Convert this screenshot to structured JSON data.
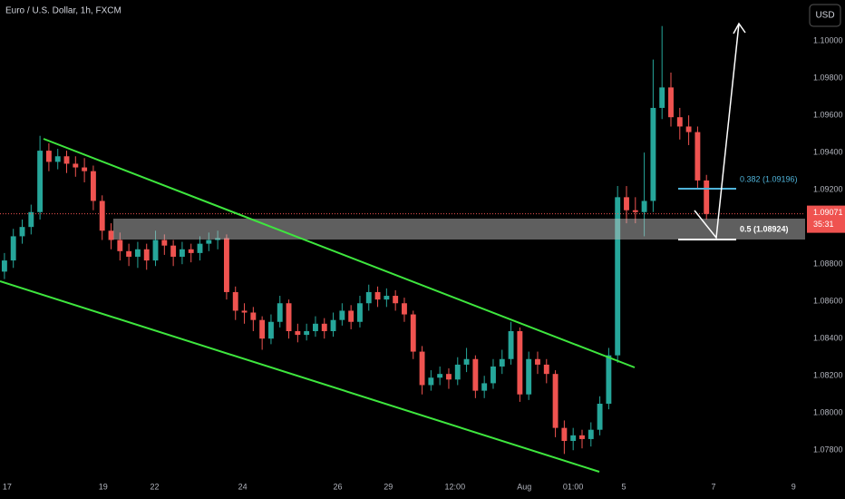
{
  "chart_data": {
    "type": "candlestick",
    "title": "Euro / U.S. Dollar, 1h, FXCM",
    "currency": "USD",
    "up_color": "#26a69a",
    "down_color": "#ef5350",
    "grid": false,
    "ylim": [
      1.0765,
      1.1022
    ],
    "yticks": [
      {
        "value": 1.078,
        "label": "1.07800"
      },
      {
        "value": 1.08,
        "label": "1.08000"
      },
      {
        "value": 1.082,
        "label": "1.08200"
      },
      {
        "value": 1.084,
        "label": "1.08400"
      },
      {
        "value": 1.086,
        "label": "1.08600"
      },
      {
        "value": 1.088,
        "label": "1.08800"
      },
      {
        "value": 1.092,
        "label": "1.09200"
      },
      {
        "value": 1.094,
        "label": "1.09400"
      },
      {
        "value": 1.096,
        "label": "1.09600"
      },
      {
        "value": 1.098,
        "label": "1.09800"
      },
      {
        "value": 1.1,
        "label": "1.10000"
      }
    ],
    "xlim": [
      -0.5,
      90.1
    ],
    "xticks": [
      {
        "value": 0.3,
        "label": "17"
      },
      {
        "value": 11.1,
        "label": "19"
      },
      {
        "value": 16.9,
        "label": "22"
      },
      {
        "value": 26.8,
        "label": "24"
      },
      {
        "value": 37.5,
        "label": "26"
      },
      {
        "value": 43.2,
        "label": "29"
      },
      {
        "value": 50.7,
        "label": "12:00"
      },
      {
        "value": 58.5,
        "label": "Aug"
      },
      {
        "value": 64,
        "label": "01:00"
      },
      {
        "value": 69.7,
        "label": "5"
      },
      {
        "value": 79.8,
        "label": "7"
      },
      {
        "value": 88.8,
        "label": "9"
      }
    ],
    "open": [
      1.0876,
      1.0882,
      1.0895,
      1.09,
      1.0908,
      1.0941,
      1.0935,
      1.0938,
      1.0934,
      1.0932,
      1.093,
      1.0914,
      1.0898,
      1.0893,
      1.0887,
      1.0884,
      1.0888,
      1.0882,
      1.0893,
      1.089,
      1.0884,
      1.0888,
      1.0886,
      1.0891,
      1.0893,
      1.0894,
      1.0865,
      1.0855,
      1.0854,
      1.085,
      1.084,
      1.0849,
      1.0859,
      1.0844,
      1.0842,
      1.0844,
      1.0848,
      1.0844,
      1.085,
      1.0855,
      1.0849,
      1.0859,
      1.0865,
      1.0861,
      1.0863,
      1.0859,
      1.0853,
      1.0833,
      1.0815,
      1.0819,
      1.0821,
      1.0818,
      1.0826,
      1.0829,
      1.0812,
      1.0816,
      1.0825,
      1.0829,
      1.0844,
      1.081,
      1.0829,
      1.0826,
      1.0821,
      1.0792,
      1.0785,
      1.0788,
      1.0786,
      1.0791,
      1.0805,
      1.0831,
      1.0916,
      1.0909,
      1.0908,
      1.0914,
      1.0964,
      1.0975,
      1.0959,
      1.0954,
      1.0951,
      1.0925
    ],
    "high": [
      1.0886,
      1.0899,
      1.0904,
      1.0912,
      1.0949,
      1.0945,
      1.0942,
      1.0941,
      1.0938,
      1.0937,
      1.0933,
      1.0917,
      1.0902,
      1.0897,
      1.0891,
      1.0892,
      1.0891,
      1.0898,
      1.0896,
      1.0893,
      1.0892,
      1.0891,
      1.0895,
      1.0897,
      1.0898,
      1.0896,
      1.0868,
      1.0859,
      1.0857,
      1.0852,
      1.0853,
      1.0863,
      1.0861,
      1.0848,
      1.0848,
      1.0852,
      1.0851,
      1.0854,
      1.0859,
      1.0858,
      1.0863,
      1.0869,
      1.0868,
      1.0867,
      1.0866,
      1.0862,
      1.0855,
      1.0836,
      1.0823,
      1.0825,
      1.0824,
      1.083,
      1.0835,
      1.0831,
      1.082,
      1.0829,
      1.0834,
      1.0849,
      1.0846,
      1.0833,
      1.0833,
      1.0829,
      1.0823,
      1.0796,
      1.0792,
      1.0791,
      1.0795,
      1.0809,
      1.0835,
      1.0922,
      1.0922,
      1.0916,
      1.094,
      1.099,
      1.1008,
      1.0983,
      1.0964,
      1.096,
      1.0954,
      1.0928
    ],
    "low": [
      1.0872,
      1.0878,
      1.0891,
      1.0896,
      1.0904,
      1.093,
      1.0931,
      1.0929,
      1.0927,
      1.0924,
      1.0909,
      1.0893,
      1.0888,
      1.0882,
      1.0879,
      1.0878,
      1.0877,
      1.0879,
      1.0885,
      1.0879,
      1.088,
      1.0881,
      1.0882,
      1.0887,
      1.0888,
      1.0861,
      1.085,
      1.0848,
      1.0844,
      1.0834,
      1.0837,
      1.0846,
      1.084,
      1.0838,
      1.0839,
      1.0841,
      1.084,
      1.0841,
      1.0847,
      1.0845,
      1.0846,
      1.0855,
      1.0857,
      1.0857,
      1.0855,
      1.0849,
      1.0829,
      1.081,
      1.0812,
      1.0815,
      1.0813,
      1.0815,
      1.0822,
      1.0808,
      1.0808,
      1.0813,
      1.0821,
      1.0826,
      1.0806,
      1.0807,
      1.0821,
      1.0816,
      1.0787,
      1.0778,
      1.078,
      1.0781,
      1.0782,
      1.0788,
      1.0802,
      1.0827,
      1.0902,
      1.0902,
      1.0895,
      1.0908,
      1.0958,
      1.0954,
      1.0947,
      1.0944,
      1.0921,
      1.0904
    ],
    "close": [
      1.0882,
      1.0895,
      1.09,
      1.0908,
      1.0941,
      1.0935,
      1.0938,
      1.0934,
      1.0932,
      1.093,
      1.0914,
      1.0898,
      1.0893,
      1.0887,
      1.0884,
      1.0888,
      1.0882,
      1.0893,
      1.089,
      1.0884,
      1.0888,
      1.0886,
      1.0891,
      1.0893,
      1.0894,
      1.0865,
      1.0855,
      1.0854,
      1.085,
      1.084,
      1.0849,
      1.0859,
      1.0844,
      1.0842,
      1.0844,
      1.0848,
      1.0844,
      1.085,
      1.0855,
      1.0849,
      1.0859,
      1.0865,
      1.0861,
      1.0863,
      1.0859,
      1.0853,
      1.0833,
      1.0815,
      1.0819,
      1.0821,
      1.0818,
      1.0826,
      1.0829,
      1.0812,
      1.0816,
      1.0825,
      1.0829,
      1.0844,
      1.081,
      1.0829,
      1.0826,
      1.0821,
      1.0792,
      1.0785,
      1.0788,
      1.0786,
      1.0791,
      1.0805,
      1.0831,
      1.0916,
      1.0909,
      1.0908,
      1.0914,
      1.0964,
      1.0975,
      1.0959,
      1.0954,
      1.0951,
      1.0925,
      1.0907
    ],
    "last_price": 1.09071,
    "countdown": "35:31",
    "annotations": [
      {
        "label": "0.382 (1.09196)"
      },
      {
        "label": "0.5 (1.08924)"
      }
    ]
  }
}
